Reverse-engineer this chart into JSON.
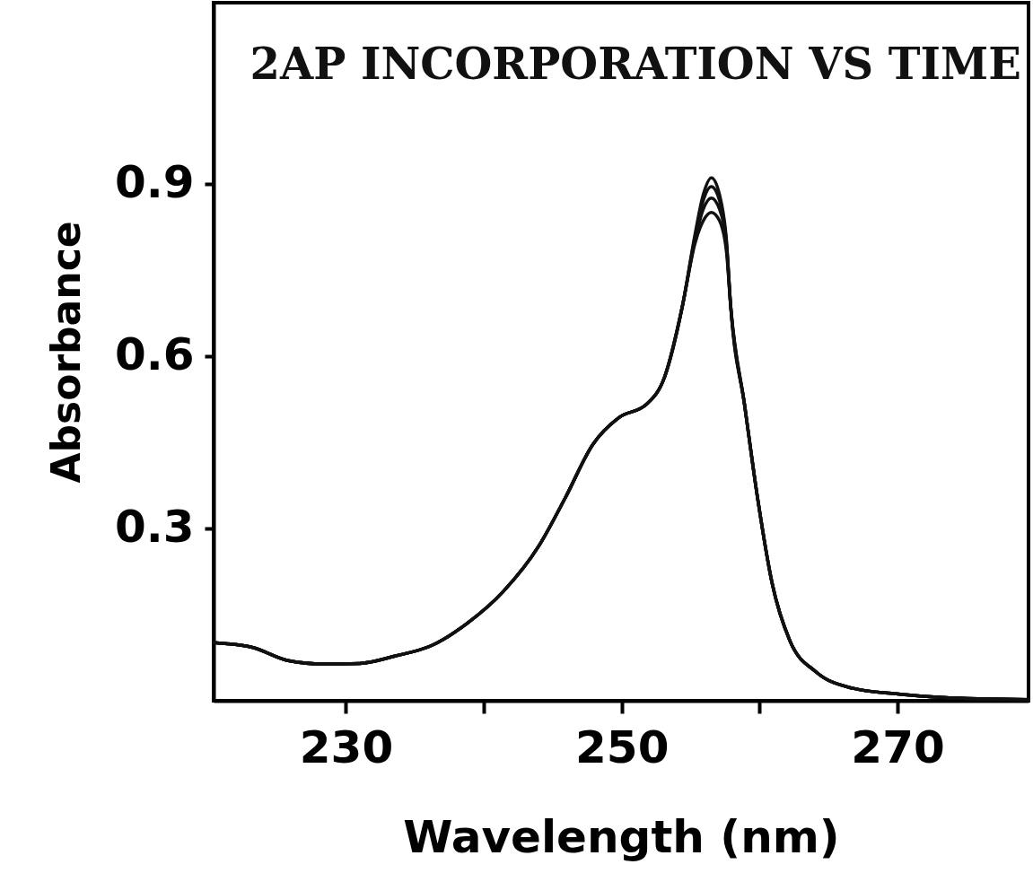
{
  "chart_data": {
    "type": "line",
    "title": "2AP INCORPORATION VS TIME",
    "xlabel": "Wavelength (nm)",
    "ylabel": "Absorbance",
    "xlim": [
      220.4,
      279.5
    ],
    "ylim": [
      0,
      1.215
    ],
    "xticks": [
      230,
      {
        "value": 240,
        "label": null
      },
      250,
      {
        "value": 260,
        "label": null
      },
      270
    ],
    "yticks": [
      0.3,
      0.6,
      0.9
    ],
    "grid": false,
    "legend": false,
    "marker": "none",
    "line_style": "solid",
    "x": [
      220.4,
      223.2,
      225.8,
      228.4,
      231,
      233.6,
      236.2,
      238.8,
      241.4,
      244,
      245.9,
      247.9,
      249.8,
      251.8,
      253.1,
      254.4,
      255.3,
      255.9,
      256.5,
      257.1,
      257.6,
      257.9,
      258.9,
      259.9,
      260.9,
      262.2,
      264.1,
      266.7,
      269.9,
      273.2,
      279.5
    ],
    "series": [
      {
        "color": "#111111",
        "values": [
          0.101,
          0.093,
          0.07,
          0.064,
          0.065,
          0.078,
          0.096,
          0.135,
          0.19,
          0.27,
          0.353,
          0.446,
          0.493,
          0.516,
          0.563,
          0.687,
          0.81,
          0.88,
          0.91,
          0.88,
          0.8,
          0.687,
          0.516,
          0.345,
          0.205,
          0.104,
          0.05,
          0.022,
          0.012,
          0.006,
          0.002
        ]
      },
      {
        "color": "#111111",
        "values": [
          0.101,
          0.093,
          0.07,
          0.064,
          0.065,
          0.078,
          0.096,
          0.135,
          0.19,
          0.27,
          0.353,
          0.446,
          0.493,
          0.516,
          0.563,
          0.687,
          0.805,
          0.87,
          0.895,
          0.87,
          0.795,
          0.687,
          0.516,
          0.345,
          0.205,
          0.104,
          0.05,
          0.022,
          0.012,
          0.006,
          0.002
        ]
      },
      {
        "color": "#111111",
        "values": [
          0.101,
          0.093,
          0.07,
          0.064,
          0.065,
          0.078,
          0.096,
          0.135,
          0.19,
          0.27,
          0.353,
          0.446,
          0.493,
          0.516,
          0.563,
          0.687,
          0.8,
          0.855,
          0.875,
          0.855,
          0.79,
          0.687,
          0.516,
          0.345,
          0.205,
          0.104,
          0.05,
          0.022,
          0.012,
          0.006,
          0.002
        ]
      },
      {
        "color": "#111111",
        "values": [
          0.101,
          0.093,
          0.07,
          0.064,
          0.065,
          0.078,
          0.096,
          0.135,
          0.19,
          0.27,
          0.353,
          0.446,
          0.493,
          0.516,
          0.563,
          0.687,
          0.795,
          0.835,
          0.85,
          0.835,
          0.78,
          0.687,
          0.516,
          0.345,
          0.205,
          0.104,
          0.05,
          0.022,
          0.012,
          0.006,
          0.002
        ]
      }
    ]
  }
}
